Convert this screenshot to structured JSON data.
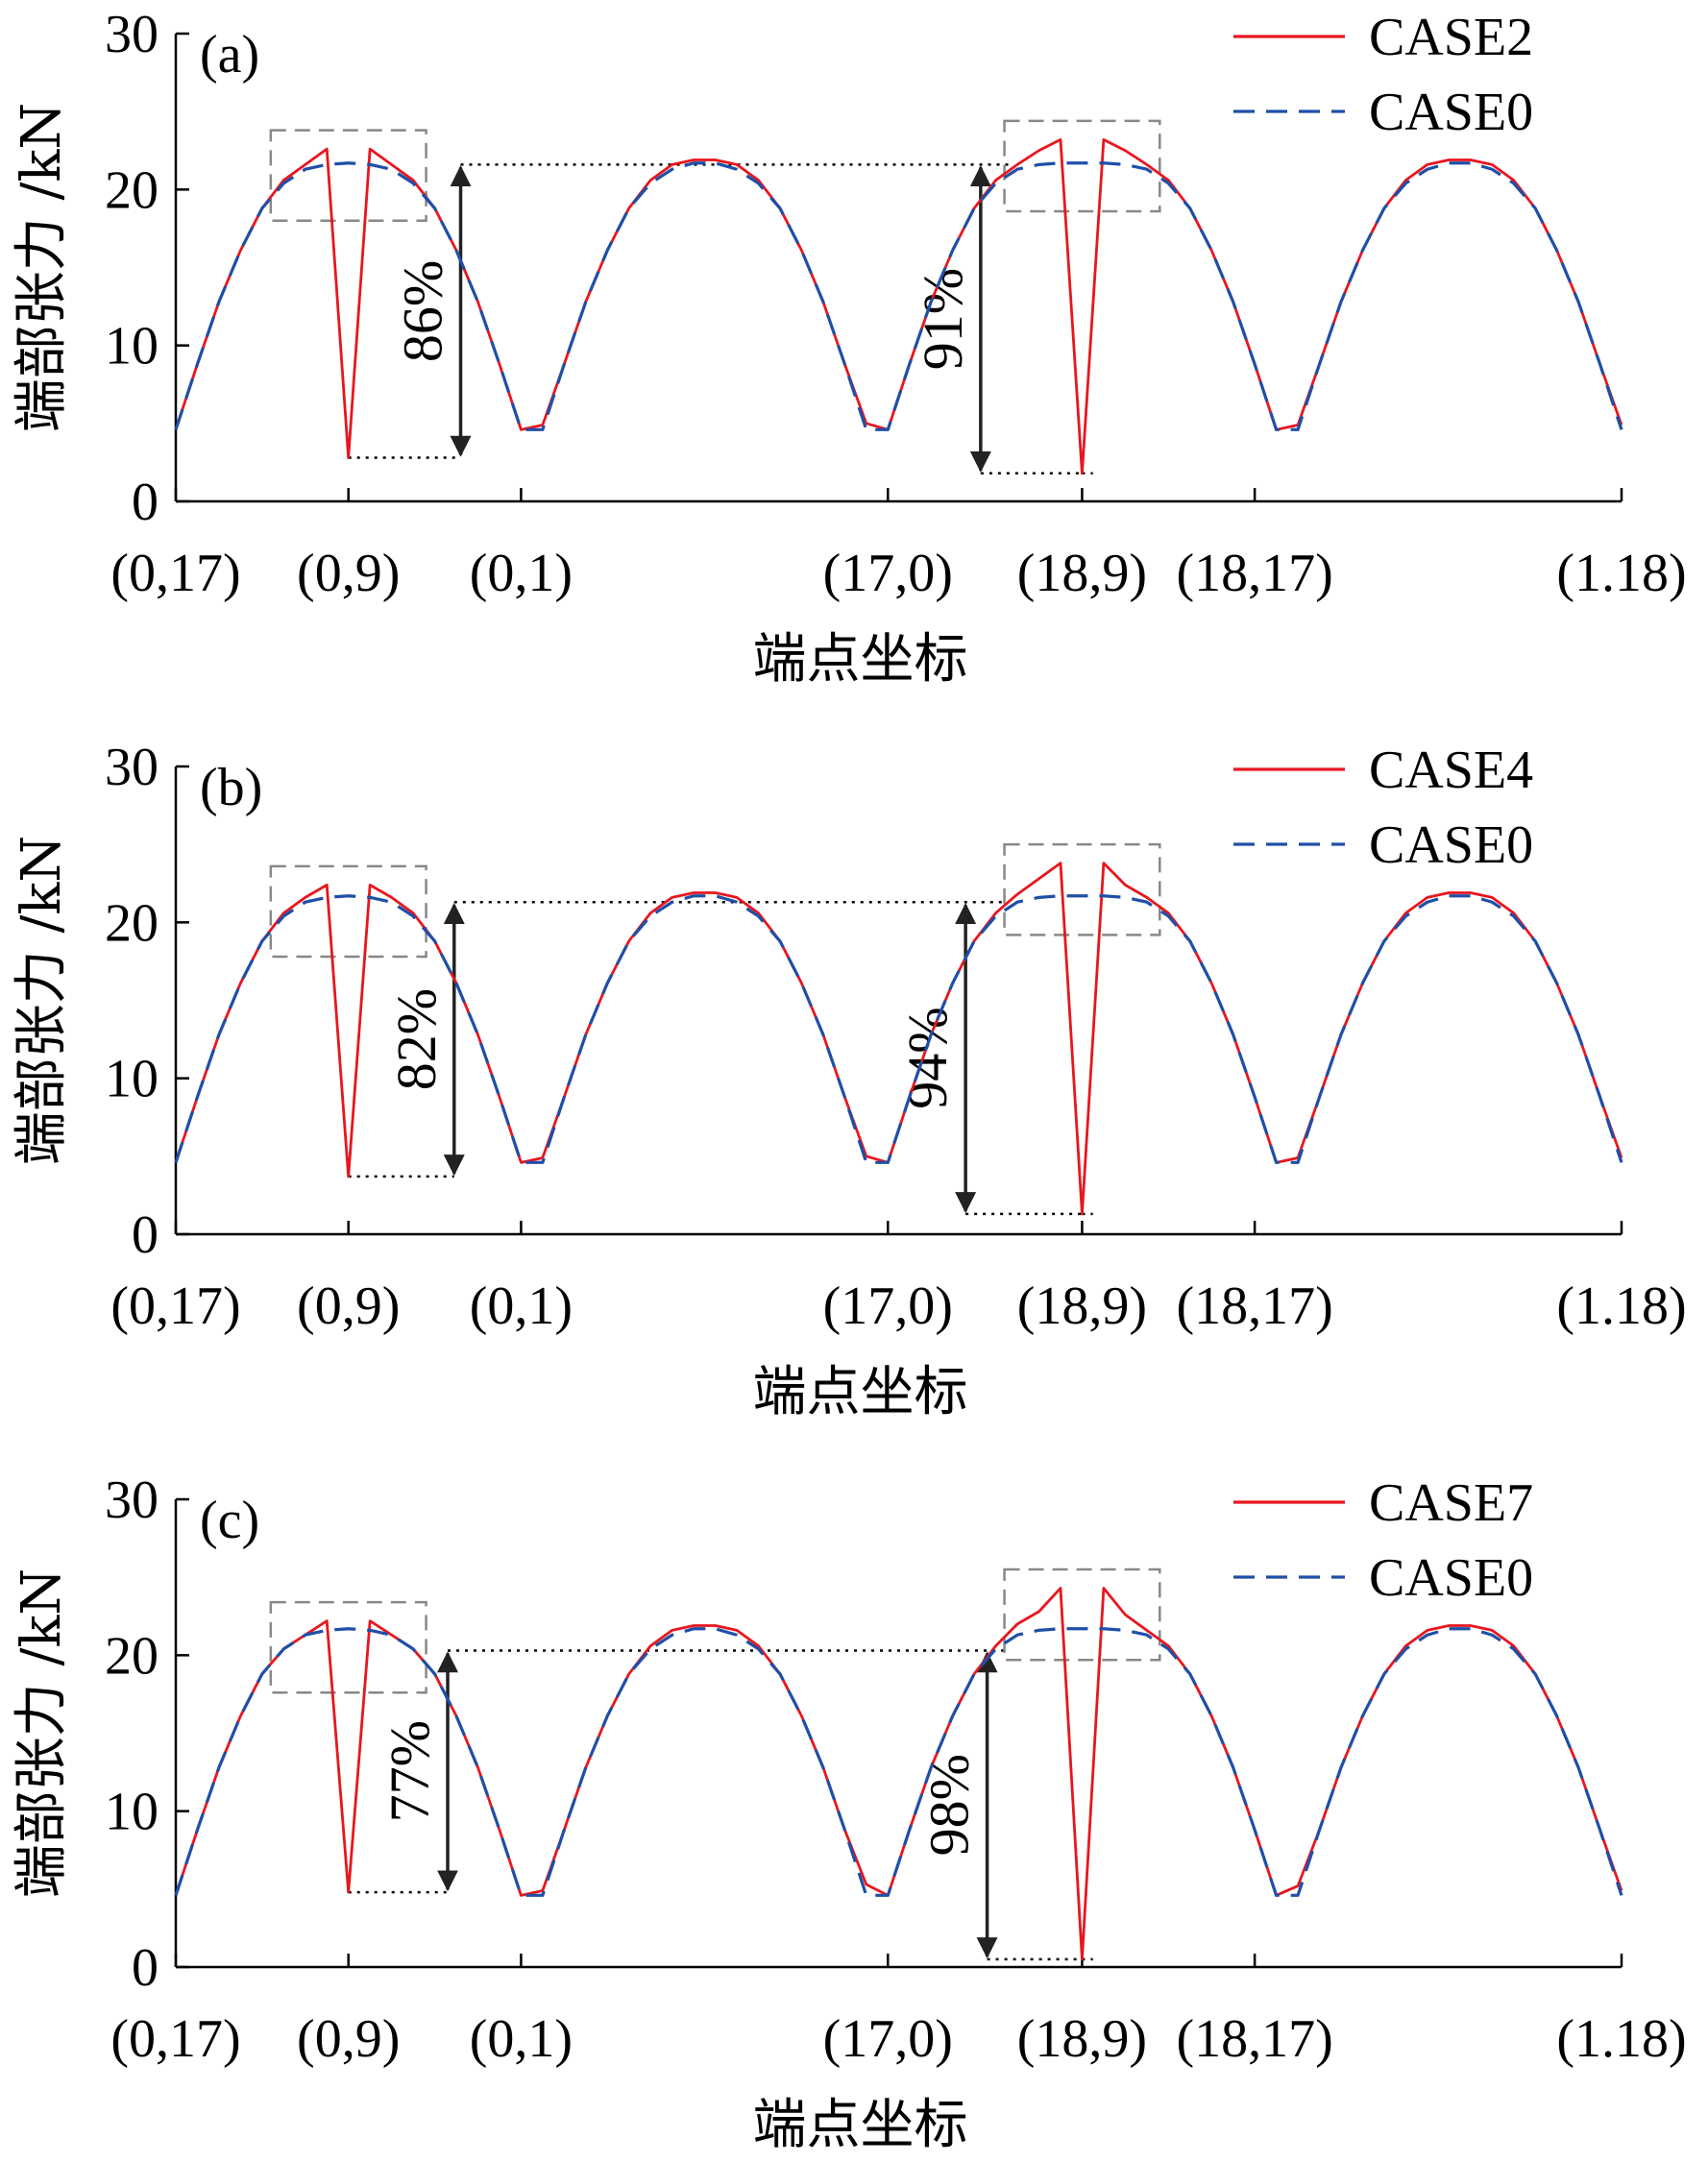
{
  "chart_data": [
    {
      "type": "line",
      "panel_label": "(a)",
      "xlabel": "端点坐标",
      "ylabel": "端部张力 /kN",
      "ylim": [
        0,
        30
      ],
      "yticks": [
        "0",
        "10",
        "20",
        "30"
      ],
      "x_tick_labels": [
        "(0,17)",
        "(0,9)",
        "(0,1)",
        "(17,0)",
        "(18,9)",
        "(18,17)",
        "(1.18)"
      ],
      "x_tick_positions": [
        0,
        8,
        16,
        33,
        42,
        50,
        67
      ],
      "xlim": [
        0,
        67
      ],
      "legend_position": "top-right",
      "colors": {
        "case": "#e8161e",
        "case0": "#1f4fa8"
      },
      "series": [
        {
          "name": "CASE2",
          "style": "solid",
          "color": "#e8161e",
          "values": [
            4.6,
            8.8,
            12.8,
            16.1,
            18.8,
            20.6,
            21.6,
            22.6,
            2.8,
            22.6,
            21.6,
            20.6,
            18.8,
            16.1,
            12.8,
            8.8,
            4.6,
            4.9,
            8.8,
            12.8,
            16.1,
            18.8,
            20.6,
            21.6,
            21.9,
            21.9,
            21.6,
            20.6,
            18.8,
            16.1,
            12.8,
            8.8,
            5.0,
            4.6,
            8.8,
            12.8,
            16.1,
            18.8,
            20.6,
            21.6,
            22.5,
            23.2,
            1.8,
            23.2,
            22.5,
            21.6,
            20.6,
            18.8,
            16.1,
            12.8,
            8.8,
            4.6,
            4.9,
            8.8,
            12.8,
            16.1,
            18.8,
            20.6,
            21.6,
            21.9,
            21.9,
            21.6,
            20.6,
            18.8,
            16.1,
            12.8,
            8.8,
            4.9
          ]
        },
        {
          "name": "CASE0",
          "style": "dashed",
          "color": "#1f4fa8",
          "values": [
            4.6,
            8.8,
            12.8,
            16.1,
            18.8,
            20.4,
            21.3,
            21.6,
            21.7,
            21.6,
            21.3,
            20.4,
            18.8,
            16.1,
            12.8,
            8.8,
            4.6,
            4.6,
            8.8,
            12.8,
            16.1,
            18.8,
            20.4,
            21.3,
            21.7,
            21.7,
            21.3,
            20.4,
            18.8,
            16.1,
            12.8,
            8.8,
            4.6,
            4.6,
            8.8,
            12.8,
            16.1,
            18.8,
            20.4,
            21.3,
            21.6,
            21.7,
            21.7,
            21.7,
            21.6,
            21.3,
            20.4,
            18.8,
            16.1,
            12.8,
            8.8,
            4.6,
            4.6,
            8.8,
            12.8,
            16.1,
            18.8,
            20.4,
            21.3,
            21.7,
            21.7,
            21.3,
            20.4,
            18.8,
            16.1,
            12.8,
            8.8,
            4.6
          ]
        }
      ],
      "annotations": [
        {
          "text": "86%",
          "x_arrow": 13.2,
          "y_top": 21.6,
          "y_bottom": 2.8
        },
        {
          "text": "91%",
          "x_arrow": 37.3,
          "y_top": 21.6,
          "y_bottom": 1.8
        }
      ]
    },
    {
      "type": "line",
      "panel_label": "(b)",
      "xlabel": "端点坐标",
      "ylabel": "端部张力 /kN",
      "ylim": [
        0,
        30
      ],
      "yticks": [
        "0",
        "10",
        "20",
        "30"
      ],
      "x_tick_labels": [
        "(0,17)",
        "(0,9)",
        "(0,1)",
        "(17,0)",
        "(18,9)",
        "(18,17)",
        "(1.18)"
      ],
      "x_tick_positions": [
        0,
        8,
        16,
        33,
        42,
        50,
        67
      ],
      "xlim": [
        0,
        67
      ],
      "legend_position": "top-right",
      "colors": {
        "case": "#e8161e",
        "case0": "#1f4fa8"
      },
      "series": [
        {
          "name": "CASE4",
          "style": "solid",
          "color": "#e8161e",
          "values": [
            4.6,
            8.8,
            12.8,
            16.1,
            18.8,
            20.6,
            21.6,
            22.4,
            3.7,
            22.4,
            21.6,
            20.6,
            18.8,
            16.1,
            12.8,
            8.8,
            4.6,
            4.9,
            8.8,
            12.8,
            16.1,
            18.8,
            20.6,
            21.6,
            21.9,
            21.9,
            21.6,
            20.6,
            18.8,
            16.1,
            12.8,
            8.8,
            5.0,
            4.6,
            8.8,
            12.8,
            16.1,
            18.8,
            20.6,
            21.8,
            22.8,
            23.8,
            1.3,
            23.8,
            22.4,
            21.6,
            20.6,
            18.8,
            16.1,
            12.8,
            8.8,
            4.6,
            4.9,
            8.8,
            12.8,
            16.1,
            18.8,
            20.6,
            21.6,
            21.9,
            21.9,
            21.6,
            20.6,
            18.8,
            16.1,
            12.8,
            8.8,
            4.9
          ]
        },
        {
          "name": "CASE0",
          "style": "dashed",
          "color": "#1f4fa8",
          "values": [
            4.6,
            8.8,
            12.8,
            16.1,
            18.8,
            20.4,
            21.3,
            21.6,
            21.7,
            21.6,
            21.3,
            20.4,
            18.8,
            16.1,
            12.8,
            8.8,
            4.6,
            4.6,
            8.8,
            12.8,
            16.1,
            18.8,
            20.4,
            21.3,
            21.7,
            21.7,
            21.3,
            20.4,
            18.8,
            16.1,
            12.8,
            8.8,
            4.6,
            4.6,
            8.8,
            12.8,
            16.1,
            18.8,
            20.4,
            21.3,
            21.6,
            21.7,
            21.7,
            21.7,
            21.6,
            21.3,
            20.4,
            18.8,
            16.1,
            12.8,
            8.8,
            4.6,
            4.6,
            8.8,
            12.8,
            16.1,
            18.8,
            20.4,
            21.3,
            21.7,
            21.7,
            21.3,
            20.4,
            18.8,
            16.1,
            12.8,
            8.8,
            4.6
          ]
        }
      ],
      "annotations": [
        {
          "text": "82%",
          "x_arrow": 12.9,
          "y_top": 21.3,
          "y_bottom": 3.7
        },
        {
          "text": "94%",
          "x_arrow": 36.6,
          "y_top": 21.3,
          "y_bottom": 1.3
        }
      ]
    },
    {
      "type": "line",
      "panel_label": "(c)",
      "xlabel": "端点坐标",
      "ylabel": "端部张力 /kN",
      "ylim": [
        0,
        30
      ],
      "yticks": [
        "0",
        "10",
        "20",
        "30"
      ],
      "x_tick_labels": [
        "(0,17)",
        "(0,9)",
        "(0,1)",
        "(17,0)",
        "(18,9)",
        "(18,17)",
        "(1.18)"
      ],
      "x_tick_positions": [
        0,
        8,
        16,
        33,
        42,
        50,
        67
      ],
      "xlim": [
        0,
        67
      ],
      "legend_position": "top-right",
      "colors": {
        "case": "#e8161e",
        "case0": "#1f4fa8"
      },
      "series": [
        {
          "name": "CASE7",
          "style": "solid",
          "color": "#e8161e",
          "values": [
            4.6,
            8.8,
            12.8,
            16.1,
            18.8,
            20.4,
            21.3,
            22.2,
            4.8,
            22.2,
            21.3,
            20.4,
            18.8,
            16.1,
            12.8,
            8.8,
            4.6,
            4.9,
            8.8,
            12.8,
            16.1,
            18.8,
            20.6,
            21.6,
            21.9,
            21.9,
            21.6,
            20.6,
            18.8,
            16.1,
            12.8,
            8.8,
            5.3,
            4.6,
            8.8,
            12.8,
            16.1,
            18.8,
            20.6,
            22.0,
            22.8,
            24.3,
            0.5,
            24.3,
            22.6,
            21.6,
            20.6,
            18.8,
            16.1,
            12.8,
            8.8,
            4.6,
            5.2,
            8.8,
            12.8,
            16.1,
            18.8,
            20.6,
            21.6,
            21.9,
            21.9,
            21.6,
            20.6,
            18.8,
            16.1,
            12.8,
            8.8,
            4.9
          ]
        },
        {
          "name": "CASE0",
          "style": "dashed",
          "color": "#1f4fa8",
          "values": [
            4.6,
            8.8,
            12.8,
            16.1,
            18.8,
            20.4,
            21.3,
            21.6,
            21.7,
            21.6,
            21.3,
            20.4,
            18.8,
            16.1,
            12.8,
            8.8,
            4.6,
            4.6,
            8.8,
            12.8,
            16.1,
            18.8,
            20.4,
            21.3,
            21.7,
            21.7,
            21.3,
            20.4,
            18.8,
            16.1,
            12.8,
            8.8,
            4.6,
            4.6,
            8.8,
            12.8,
            16.1,
            18.8,
            20.4,
            21.3,
            21.6,
            21.7,
            21.7,
            21.7,
            21.6,
            21.3,
            20.4,
            18.8,
            16.1,
            12.8,
            8.8,
            4.6,
            4.6,
            8.8,
            12.8,
            16.1,
            18.8,
            20.4,
            21.3,
            21.7,
            21.7,
            21.3,
            20.4,
            18.8,
            16.1,
            12.8,
            8.8,
            4.6
          ]
        }
      ],
      "annotations": [
        {
          "text": "77%",
          "x_arrow": 12.6,
          "y_top": 20.3,
          "y_bottom": 4.8
        },
        {
          "text": "98%",
          "x_arrow": 37.6,
          "y_top": 20.3,
          "y_bottom": 0.5
        }
      ]
    }
  ]
}
